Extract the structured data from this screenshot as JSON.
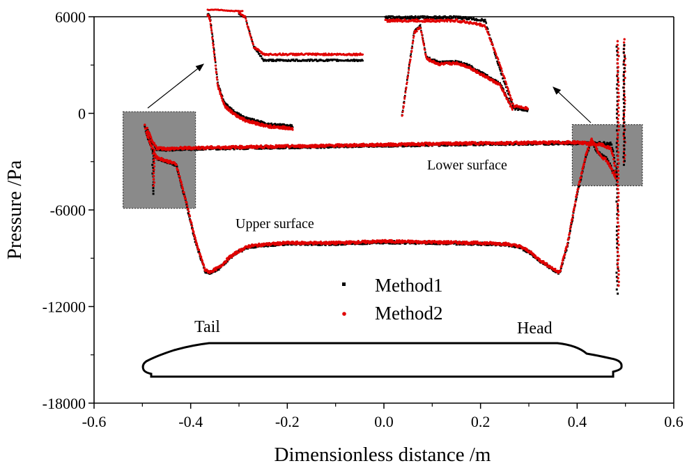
{
  "chart_data": {
    "type": "scatter",
    "title": "",
    "xlabel": "Dimensionless distance /m",
    "ylabel": "Pressure /Pa",
    "xlim": [
      -0.6,
      0.6
    ],
    "ylim": [
      -18000,
      6000
    ],
    "xticks": [
      "-0.6",
      "-0.4",
      "-0.2",
      "0.0",
      "0.2",
      "0.4",
      "0.6"
    ],
    "yticks": [
      "-18000",
      "-12000",
      "-6000",
      "0",
      "6000"
    ],
    "x_tick_values": [
      -0.6,
      -0.4,
      -0.2,
      0.0,
      0.2,
      0.4,
      0.6
    ],
    "y_tick_values": [
      -18000,
      -12000,
      -6000,
      0,
      6000
    ],
    "colors": {
      "method1": "#000000",
      "method2": "#e00000",
      "inset_box": "#8a8a8a"
    },
    "series": [
      {
        "name": "Method1",
        "surface": "upper",
        "x": [
          -0.495,
          -0.49,
          -0.48,
          -0.47,
          -0.45,
          -0.43,
          -0.41,
          -0.39,
          -0.37,
          -0.36,
          -0.34,
          -0.32,
          -0.3,
          -0.28,
          -0.25,
          -0.2,
          -0.1,
          0.0,
          0.1,
          0.2,
          0.25,
          0.28,
          0.3,
          0.32,
          0.34,
          0.36,
          0.365,
          0.38,
          0.4,
          0.42,
          0.43,
          0.44,
          0.45,
          0.46,
          0.47,
          0.48
        ],
        "values": [
          -800,
          -1400,
          -2200,
          -2800,
          -3000,
          -3200,
          -5500,
          -8000,
          -9800,
          -9900,
          -9600,
          -9000,
          -8600,
          -8300,
          -8200,
          -8100,
          -8100,
          -8000,
          -8050,
          -8100,
          -8150,
          -8300,
          -8600,
          -9100,
          -9500,
          -9900,
          -9800,
          -8200,
          -5000,
          -2500,
          -1700,
          -2300,
          -2600,
          -2800,
          -3300,
          -4000
        ]
      },
      {
        "name": "Method1",
        "surface": "lower",
        "x": [
          -0.49,
          -0.48,
          -0.47,
          -0.45,
          -0.4,
          -0.3,
          -0.2,
          -0.1,
          0.0,
          0.1,
          0.2,
          0.3,
          0.4,
          0.45,
          0.47,
          0.475,
          0.48
        ],
        "values": [
          -1000,
          -1800,
          -2200,
          -2250,
          -2200,
          -2150,
          -2100,
          -2050,
          -2000,
          -1950,
          -1900,
          -1880,
          -1850,
          -1850,
          -1900,
          -2400,
          -3500
        ]
      },
      {
        "name": "Method2",
        "surface": "upper",
        "x": [
          -0.495,
          -0.49,
          -0.48,
          -0.47,
          -0.45,
          -0.43,
          -0.41,
          -0.39,
          -0.37,
          -0.36,
          -0.34,
          -0.32,
          -0.3,
          -0.28,
          -0.25,
          -0.2,
          -0.1,
          0.0,
          0.1,
          0.2,
          0.25,
          0.28,
          0.3,
          0.32,
          0.34,
          0.36,
          0.365,
          0.38,
          0.4,
          0.42,
          0.43,
          0.44,
          0.45,
          0.46,
          0.47,
          0.48
        ],
        "values": [
          -750,
          -1350,
          -2150,
          -2750,
          -2950,
          -3150,
          -5400,
          -7900,
          -9750,
          -9850,
          -9550,
          -8950,
          -8550,
          -8250,
          -8150,
          -8050,
          -8050,
          -7950,
          -8000,
          -8050,
          -8100,
          -8250,
          -8550,
          -9050,
          -9450,
          -9850,
          -9750,
          -8100,
          -4900,
          -2400,
          -1600,
          -2200,
          -2700,
          -2900,
          -3400,
          -4100
        ]
      },
      {
        "name": "Method2",
        "surface": "lower",
        "x": [
          -0.49,
          -0.48,
          -0.47,
          -0.45,
          -0.4,
          -0.3,
          -0.2,
          -0.1,
          0.0,
          0.1,
          0.2,
          0.3,
          0.4,
          0.45,
          0.47,
          0.475,
          0.48
        ],
        "values": [
          -950,
          -1750,
          -2150,
          -2200,
          -2150,
          -2100,
          -2050,
          -2000,
          -1950,
          -1900,
          -1850,
          -1830,
          -1800,
          -1950,
          -2200,
          -2700,
          -3800
        ]
      }
    ],
    "legend": {
      "entries": [
        "Method1",
        "Method2"
      ],
      "position": "center"
    },
    "annotations": [
      {
        "text": "Lower surface",
        "x": 0.1,
        "y": -3300
      },
      {
        "text": "Upper surface",
        "x": -0.3,
        "y": -6700
      },
      {
        "text": "Tail",
        "x": -0.35,
        "y": -13400
      },
      {
        "text": "Head",
        "x": 0.33,
        "y": -13400
      }
    ],
    "zoom_regions": [
      {
        "x_range": [
          -0.54,
          -0.39
        ],
        "y_range": [
          -5900,
          100
        ]
      },
      {
        "x_range": [
          0.39,
          0.535
        ],
        "y_range": [
          -4500,
          -700
        ]
      }
    ],
    "inset_curves": {
      "left_upper": {
        "t": [
          0.0,
          0.03,
          0.08,
          0.12,
          0.2,
          0.32,
          0.45,
          0.55,
          0.7,
          1.0
        ],
        "p": [
          0.97,
          0.93,
          0.62,
          0.35,
          0.18,
          0.1,
          0.05,
          0.03,
          0.0,
          -0.02
        ]
      },
      "left_lower_method1": {
        "t": [
          0.0,
          0.05,
          0.12,
          0.2,
          0.3,
          0.4,
          1.0
        ],
        "p": [
          0.95,
          0.9,
          0.5,
          0.32,
          0.32,
          0.32,
          0.32
        ]
      },
      "left_lower_method2": {
        "t": [
          0.0,
          0.05,
          0.12,
          0.2,
          0.3,
          0.4,
          1.0
        ],
        "p": [
          0.95,
          0.9,
          0.5,
          0.4,
          0.4,
          0.4,
          0.4
        ]
      },
      "right_method1": {
        "t": [
          0.0,
          0.3,
          0.5,
          0.6,
          0.7,
          0.8,
          0.9,
          1.0
        ],
        "p": [
          0.98,
          0.98,
          0.98,
          0.97,
          0.95,
          0.5,
          0.12,
          0.1
        ]
      },
      "right_method2": {
        "t": [
          0.0,
          0.3,
          0.5,
          0.6,
          0.7,
          0.8,
          0.9,
          1.0
        ],
        "p": [
          0.95,
          0.95,
          0.95,
          0.93,
          0.9,
          0.55,
          0.14,
          0.12
        ]
      },
      "right_lower": {
        "t": [
          0.0,
          0.1,
          0.15,
          0.2,
          0.3,
          0.45,
          0.55,
          0.65,
          0.7,
          0.8,
          0.9
        ],
        "p": [
          0.05,
          0.85,
          0.9,
          0.6,
          0.55,
          0.56,
          0.52,
          0.45,
          0.42,
          0.35,
          0.12
        ]
      }
    }
  }
}
